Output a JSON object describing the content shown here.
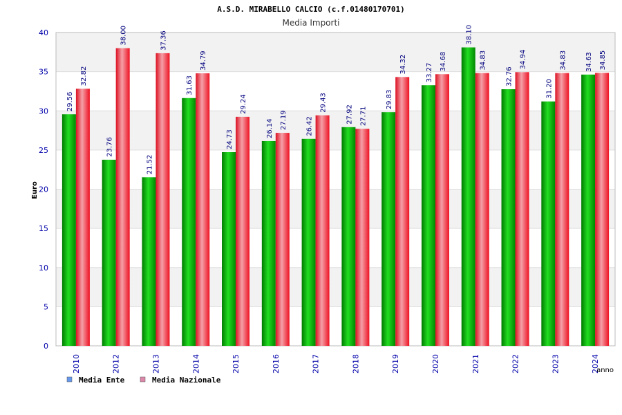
{
  "chart_data": {
    "type": "bar",
    "title": "A.S.D. MIRABELLO CALCIO (c.f.01480170701)",
    "subtitle": "Media Importi",
    "xlabel": "anno",
    "ylabel": "Euro",
    "ylim": [
      0,
      40
    ],
    "yticks": [
      0,
      5,
      10,
      15,
      20,
      25,
      30,
      35,
      40
    ],
    "grid": true,
    "legend_position": "bottom-left",
    "categories": [
      "2010",
      "2012",
      "2013",
      "2014",
      "2015",
      "2016",
      "2017",
      "2018",
      "2019",
      "2020",
      "2021",
      "2022",
      "2023",
      "2024"
    ],
    "series": [
      {
        "name": "Media Ente",
        "color": "#00aa00",
        "legend_color": "#6699ee",
        "values": [
          29.56,
          23.76,
          21.52,
          31.63,
          24.73,
          26.14,
          26.42,
          27.92,
          29.83,
          33.27,
          38.1,
          32.76,
          31.2,
          34.63
        ],
        "labels": [
          "29.56",
          "23.76",
          "21.52",
          "31.63",
          "24.73",
          "26.14",
          "26.42",
          "27.92",
          "29.83",
          "33.27",
          "38.10",
          "32.76",
          "31.20",
          "34.63"
        ]
      },
      {
        "name": "Media Nazionale",
        "color": "#ee2222",
        "legend_color": "#dd88aa",
        "values": [
          32.82,
          38.0,
          37.36,
          34.79,
          29.24,
          27.19,
          29.43,
          27.71,
          34.32,
          34.68,
          34.83,
          34.94,
          34.83,
          34.85
        ],
        "labels": [
          "32.82",
          "38.00",
          "37.36",
          "34.79",
          "29.24",
          "27.19",
          "29.43",
          "27.71",
          "34.32",
          "34.68",
          "34.83",
          "34.94",
          "34.83",
          "34.85"
        ]
      }
    ]
  }
}
